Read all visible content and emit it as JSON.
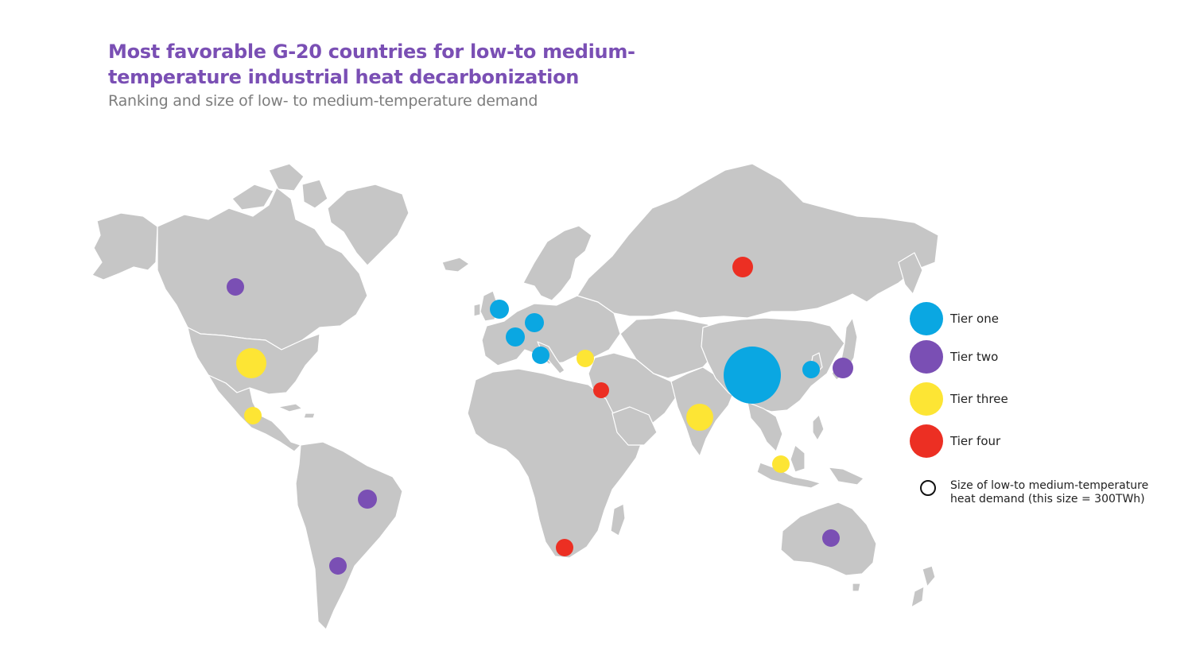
{
  "title": "Most favorable G-20 countries for low-to medium-temperature industrial heat decarbonization",
  "subtitle": "Ranking and size of low- to medium-temperature demand",
  "colors": {
    "land": "#c6c6c6",
    "tier_one": "#0aa7e2",
    "tier_two": "#7a4fb4",
    "tier_three": "#fde534",
    "tier_four": "#ec2f23"
  },
  "legend": {
    "tiers": [
      {
        "label": "Tier one",
        "color": "#0aa7e2"
      },
      {
        "label": "Tier two",
        "color": "#7a4fb4"
      },
      {
        "label": "Tier three",
        "color": "#fde534"
      },
      {
        "label": "Tier four",
        "color": "#ec2f23"
      }
    ],
    "size_note": "Size of low-to medium-temperature heat demand (this size = 300TWh)"
  },
  "markers": [
    {
      "tier": 1,
      "color": "#0aa7e2"
    },
    {
      "tier": 1,
      "color": "#0aa7e2"
    },
    {
      "tier": 1,
      "color": "#0aa7e2"
    },
    {
      "tier": 1,
      "color": "#0aa7e2"
    },
    {
      "tier": 1,
      "color": "#0aa7e2"
    },
    {
      "tier": 1,
      "color": "#0aa7e2"
    },
    {
      "tier": 2,
      "color": "#7a4fb4"
    },
    {
      "tier": 2,
      "color": "#7a4fb4"
    },
    {
      "tier": 2,
      "color": "#7a4fb4"
    },
    {
      "tier": 2,
      "color": "#7a4fb4"
    },
    {
      "tier": 2,
      "color": "#7a4fb4"
    },
    {
      "tier": 3,
      "color": "#fde534"
    },
    {
      "tier": 3,
      "color": "#fde534"
    },
    {
      "tier": 3,
      "color": "#fde534"
    },
    {
      "tier": 3,
      "color": "#fde534"
    },
    {
      "tier": 3,
      "color": "#fde534"
    },
    {
      "tier": 4,
      "color": "#ec2f23"
    },
    {
      "tier": 4,
      "color": "#ec2f23"
    },
    {
      "tier": 4,
      "color": "#ec2f23"
    }
  ]
}
